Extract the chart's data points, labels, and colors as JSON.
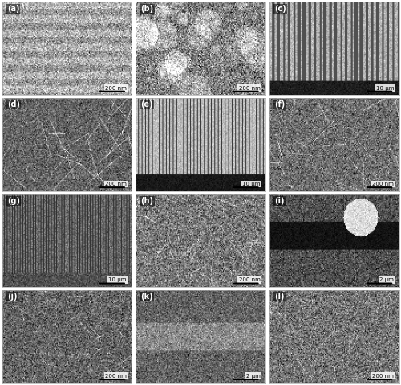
{
  "figure_width": 5.0,
  "figure_height": 4.79,
  "dpi": 100,
  "nrows": 4,
  "ncols": 3,
  "labels": [
    "(a)",
    "(b)",
    "(c)",
    "(d)",
    "(e)",
    "(f)",
    "(g)",
    "(h)",
    "(i)",
    "(j)",
    "(k)",
    "(l)"
  ],
  "scale_bar_texts": [
    "200 nm",
    "200 nm",
    "10 μm",
    "200 nm",
    "10 μm",
    "200 nm",
    "10 μm",
    "200 nm",
    "2 μm",
    "200 nm",
    "2 μm",
    "200 nm"
  ],
  "bg_color": "#ffffff",
  "hspace": 0.03,
  "wspace": 0.03,
  "label_fontsize": 7,
  "scalebar_fontsize": 5
}
